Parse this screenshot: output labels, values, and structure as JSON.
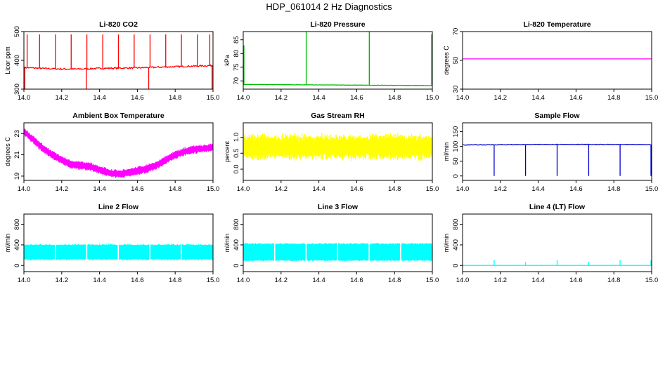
{
  "title": "HDP_061014  2 Hz Diagnostics",
  "chart_data": [
    {
      "id": "p1",
      "type": "line",
      "title": "Li-820 CO2",
      "ylabel": "Licor ppm",
      "color": "#ff0000",
      "xlim": [
        14.0,
        15.0
      ],
      "ylim": [
        300,
        500
      ],
      "xticks": [
        14.0,
        14.2,
        14.4,
        14.6,
        14.8,
        15.0
      ],
      "xtick_labels": [
        "14.0",
        "14.2",
        "14.4",
        "14.6",
        "14.8",
        "15.0"
      ],
      "yticks": [
        300,
        400,
        500
      ],
      "ytick_labels": [
        "300",
        "400",
        "500"
      ],
      "series": [
        {
          "name": "CO2",
          "x": [
            14.0,
            14.1,
            14.2,
            14.3,
            14.4,
            14.5,
            14.6,
            14.7,
            14.8,
            14.9,
            15.0
          ],
          "y": [
            375,
            372,
            370,
            370,
            372,
            373,
            374,
            376,
            378,
            380,
            382
          ]
        }
      ],
      "spikes_up": [
        14.017,
        14.083,
        14.167,
        14.25,
        14.333,
        14.417,
        14.5,
        14.583,
        14.667,
        14.75,
        14.833,
        14.917,
        14.983
      ],
      "spike_top": 490,
      "dips": [
        14.005,
        14.33,
        14.66,
        14.995
      ],
      "dip_bottom": 300,
      "noise": 5
    },
    {
      "id": "p2",
      "type": "line",
      "title": "Li-820 Pressure",
      "ylabel": "kPa",
      "color": "#00bb00",
      "xlim": [
        14.0,
        15.0
      ],
      "ylim": [
        67,
        88
      ],
      "xticks": [
        14.0,
        14.2,
        14.4,
        14.6,
        14.8,
        15.0
      ],
      "xtick_labels": [
        "14.0",
        "14.2",
        "14.4",
        "14.6",
        "14.8",
        "15.0"
      ],
      "yticks": [
        70,
        75,
        80,
        85
      ],
      "ytick_labels": [
        "70",
        "75",
        "80",
        "85"
      ],
      "series": [
        {
          "name": "Pressure",
          "x": [
            14.0,
            14.25,
            14.5,
            14.75,
            15.0
          ],
          "y": [
            68.7,
            68.6,
            68.5,
            68.4,
            68.3
          ]
        }
      ],
      "spikes_up": [
        14.0,
        14.333,
        14.667,
        14.667,
        15.0
      ],
      "spike_tops": [
        83,
        88,
        88,
        88,
        87
      ],
      "noise": 0.1
    },
    {
      "id": "p3",
      "type": "line",
      "title": "Li-820 Temperature",
      "ylabel": "degrees C",
      "color": "#ff00ff",
      "xlim": [
        14.0,
        15.0
      ],
      "ylim": [
        30,
        70
      ],
      "xticks": [
        14.0,
        14.2,
        14.4,
        14.6,
        14.8,
        15.0
      ],
      "xtick_labels": [
        "14.0",
        "14.2",
        "14.4",
        "14.6",
        "14.8",
        "15.0"
      ],
      "yticks": [
        30,
        50,
        70
      ],
      "ytick_labels": [
        "30",
        "50",
        "70"
      ],
      "series": [
        {
          "name": "Temperature",
          "x": [
            14.0,
            15.0
          ],
          "y": [
            51,
            51
          ]
        }
      ]
    },
    {
      "id": "p4",
      "type": "line",
      "title": "Ambient Box Temperature",
      "ylabel": "degrees C",
      "color": "#ff00ff",
      "xlim": [
        14.0,
        15.0
      ],
      "ylim": [
        18.6,
        24.0
      ],
      "xticks": [
        14.0,
        14.2,
        14.4,
        14.6,
        14.8,
        15.0
      ],
      "xtick_labels": [
        "14.0",
        "14.2",
        "14.4",
        "14.6",
        "14.8",
        "15.0"
      ],
      "yticks": [
        19,
        21,
        23
      ],
      "ytick_labels": [
        "19",
        "21",
        "23"
      ],
      "series": [
        {
          "name": "Ambient",
          "x": [
            14.0,
            14.05,
            14.1,
            14.15,
            14.2,
            14.25,
            14.3,
            14.35,
            14.4,
            14.45,
            14.5,
            14.55,
            14.6,
            14.65,
            14.7,
            14.75,
            14.8,
            14.85,
            14.9,
            14.95,
            15.0
          ],
          "y": [
            23.2,
            22.4,
            21.6,
            21.0,
            20.5,
            20.1,
            20.0,
            19.9,
            19.6,
            19.3,
            19.2,
            19.3,
            19.5,
            19.7,
            20.0,
            20.5,
            21.0,
            21.3,
            21.5,
            21.6,
            21.7
          ]
        }
      ],
      "band": 0.6
    },
    {
      "id": "p5",
      "type": "line",
      "title": "Gas Stream RH",
      "ylabel": "percent",
      "color": "#ffff00",
      "xlim": [
        14.0,
        15.0
      ],
      "ylim": [
        -0.35,
        1.45
      ],
      "xticks": [
        14.0,
        14.2,
        14.4,
        14.6,
        14.8,
        15.0
      ],
      "xtick_labels": [
        "14.0",
        "14.2",
        "14.4",
        "14.6",
        "14.8",
        "15.0"
      ],
      "yticks": [
        0.0,
        0.5,
        1.0
      ],
      "ytick_labels": [
        "0.0",
        "0.5",
        "1.0"
      ],
      "series": [
        {
          "name": "RH",
          "x": [
            14.0,
            15.0
          ],
          "y": [
            0.7,
            0.7
          ]
        }
      ],
      "band": 0.6,
      "noise": 0.15
    },
    {
      "id": "p6",
      "type": "line",
      "title": "Sample Flow",
      "ylabel": "ml/min",
      "color": "#0000cc",
      "xlim": [
        14.0,
        15.0
      ],
      "ylim": [
        -15,
        180
      ],
      "xticks": [
        14.0,
        14.2,
        14.4,
        14.6,
        14.8,
        15.0
      ],
      "xtick_labels": [
        "14.0",
        "14.2",
        "14.4",
        "14.6",
        "14.8",
        "15.0"
      ],
      "yticks": [
        0,
        50,
        100,
        150
      ],
      "ytick_labels": [
        "0",
        "50",
        "100",
        "150"
      ],
      "series": [
        {
          "name": "Sample",
          "x": [
            14.0,
            14.5,
            15.0
          ],
          "y": [
            105,
            107,
            106
          ]
        }
      ],
      "dips": [
        14.167,
        14.333,
        14.5,
        14.667,
        14.833,
        15.0
      ],
      "dip_bottom": 0,
      "noise": 2
    },
    {
      "id": "p7",
      "type": "area",
      "title": "Line 2 Flow",
      "ylabel": "ml/min",
      "color": "#00ffff",
      "xlim": [
        14.0,
        15.0
      ],
      "ylim": [
        -120,
        1000
      ],
      "xticks": [
        14.0,
        14.2,
        14.4,
        14.6,
        14.8,
        15.0
      ],
      "xtick_labels": [
        "14.0",
        "14.2",
        "14.4",
        "14.6",
        "14.8",
        "15.0"
      ],
      "yticks": [
        0,
        400,
        800
      ],
      "ytick_labels": [
        "0",
        "400",
        "800"
      ],
      "series": [
        {
          "name": "Line 2",
          "x": [
            14.0,
            15.0
          ],
          "low": [
            120,
            120
          ],
          "high": [
            400,
            400
          ]
        }
      ],
      "gaps": [
        14.167,
        14.333,
        14.5,
        14.667,
        14.833
      ]
    },
    {
      "id": "p8",
      "type": "area",
      "title": "Line 3 Flow",
      "ylabel": "ml/min",
      "color": "#00ffff",
      "xlim": [
        14.0,
        15.0
      ],
      "ylim": [
        -120,
        1000
      ],
      "xticks": [
        14.0,
        14.2,
        14.4,
        14.6,
        14.8,
        15.0
      ],
      "xtick_labels": [
        "14.0",
        "14.2",
        "14.4",
        "14.6",
        "14.8",
        "15.0"
      ],
      "yticks": [
        0,
        400,
        800
      ],
      "ytick_labels": [
        "0",
        "400",
        "800"
      ],
      "series": [
        {
          "name": "Line 3",
          "x": [
            14.0,
            15.0
          ],
          "low": [
            100,
            100
          ],
          "high": [
            420,
            420
          ]
        }
      ],
      "gaps": [
        14.167,
        14.333,
        14.5,
        14.667,
        14.833
      ]
    },
    {
      "id": "p9",
      "type": "line",
      "title": "Line 4 (LT) Flow",
      "ylabel": "ml/min",
      "color": "#00ffff",
      "xlim": [
        14.0,
        15.0
      ],
      "ylim": [
        -120,
        1000
      ],
      "xticks": [
        14.0,
        14.2,
        14.4,
        14.6,
        14.8,
        15.0
      ],
      "xtick_labels": [
        "14.0",
        "14.2",
        "14.4",
        "14.6",
        "14.8",
        "15.0"
      ],
      "yticks": [
        0,
        400,
        800
      ],
      "ytick_labels": [
        "0",
        "400",
        "800"
      ],
      "series": [
        {
          "name": "Line 4",
          "x": [
            14.0,
            15.0
          ],
          "y": [
            0,
            0
          ]
        }
      ],
      "spikes_up": [
        14.167,
        14.333,
        14.5,
        14.667,
        14.833,
        15.0
      ],
      "spike_tops": [
        110,
        70,
        110,
        70,
        110,
        100
      ]
    }
  ]
}
